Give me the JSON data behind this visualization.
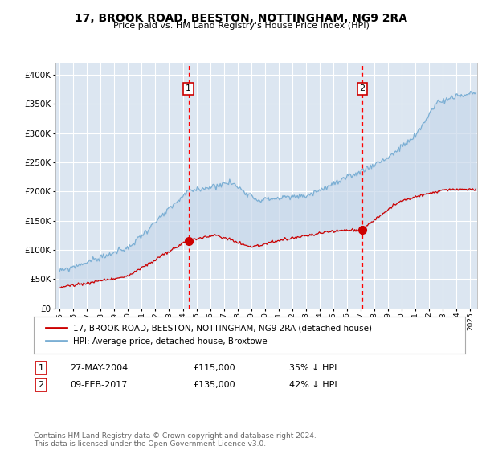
{
  "title": "17, BROOK ROAD, BEESTON, NOTTINGHAM, NG9 2RA",
  "subtitle": "Price paid vs. HM Land Registry's House Price Index (HPI)",
  "x_start": 1994.7,
  "x_end": 2025.5,
  "y_min": 0,
  "y_max": 420000,
  "yticks": [
    0,
    50000,
    100000,
    150000,
    200000,
    250000,
    300000,
    350000,
    400000
  ],
  "ytick_labels": [
    "£0",
    "£50K",
    "£100K",
    "£150K",
    "£200K",
    "£250K",
    "£300K",
    "£350K",
    "£400K"
  ],
  "sale1_date": 2004.41,
  "sale1_price": 115000,
  "sale2_date": 2017.11,
  "sale2_price": 135000,
  "line1_color": "#cc0000",
  "line2_color": "#7bafd4",
  "fill_color": "#c8d8eb",
  "plot_bg_color": "#dce6f1",
  "grid_color": "#ffffff",
  "legend_label1": "17, BROOK ROAD, BEESTON, NOTTINGHAM, NG9 2RA (detached house)",
  "legend_label2": "HPI: Average price, detached house, Broxtowe",
  "table_row1": [
    "1",
    "27-MAY-2004",
    "£115,000",
    "35% ↓ HPI"
  ],
  "table_row2": [
    "2",
    "09-FEB-2017",
    "£135,000",
    "42% ↓ HPI"
  ],
  "footnote": "Contains HM Land Registry data © Crown copyright and database right 2024.\nThis data is licensed under the Open Government Licence v3.0.",
  "xticks": [
    1995,
    1996,
    1997,
    1998,
    1999,
    2000,
    2001,
    2002,
    2003,
    2004,
    2005,
    2006,
    2007,
    2008,
    2009,
    2010,
    2011,
    2012,
    2013,
    2014,
    2015,
    2016,
    2017,
    2018,
    2019,
    2020,
    2021,
    2022,
    2023,
    2024,
    2025
  ]
}
